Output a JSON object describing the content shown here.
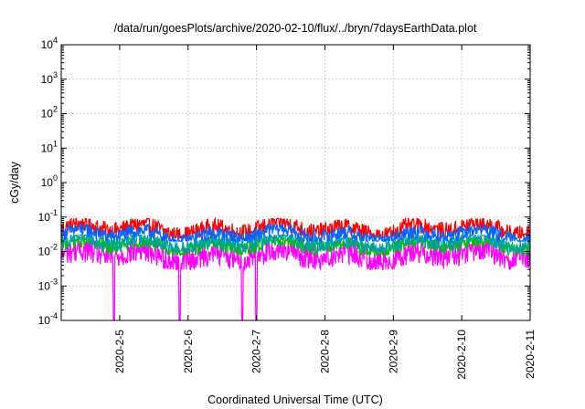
{
  "chart_data": {
    "type": "line",
    "title": "/data/run/goesPlots/archive/2020-02-10/flux/../bryn/7daysEarthData.plot",
    "xlabel": "Coordinated Universal Time (UTC)",
    "ylabel": "cGy/day",
    "y_scale": "log",
    "ylim": [
      0.0001,
      10000
    ],
    "y_ticks": [
      {
        "base": "10",
        "exp": "-4"
      },
      {
        "base": "10",
        "exp": "-3"
      },
      {
        "base": "10",
        "exp": "-2"
      },
      {
        "base": "10",
        "exp": "-1"
      },
      {
        "base": "10",
        "exp": "0"
      },
      {
        "base": "10",
        "exp": "1"
      },
      {
        "base": "10",
        "exp": "2"
      },
      {
        "base": "10",
        "exp": "3"
      },
      {
        "base": "10",
        "exp": "4"
      }
    ],
    "xlim": [
      "2020-02-04 03:30",
      "2020-02-11 00:00"
    ],
    "x_ticks": [
      "2020-2-5",
      "2020-2-6",
      "2020-2-7",
      "2020-2-8",
      "2020-2-9",
      "2020-2-10",
      "2020-2-11"
    ],
    "grid": true,
    "legend": "none",
    "series": [
      {
        "color": "#ff0000",
        "typical": 0.045,
        "spread_min": 0.025,
        "spread_max": 0.09
      },
      {
        "color": "#0066ff",
        "typical": 0.03,
        "spread_min": 0.02,
        "spread_max": 0.06
      },
      {
        "color": "#00a0a0",
        "typical": 0.018,
        "spread_min": 0.01,
        "spread_max": 0.03
      },
      {
        "color": "#00c000",
        "typical": 0.015,
        "spread_min": 0.008,
        "spread_max": 0.025
      },
      {
        "color": "#ff00ff",
        "typical": 0.008,
        "spread_min": 0.003,
        "spread_max": 0.02,
        "dropouts": [
          "2020-02-04 22:00",
          "2020-02-05 21:00",
          "2020-02-06 19:00",
          "2020-02-07 00:00"
        ]
      }
    ]
  }
}
